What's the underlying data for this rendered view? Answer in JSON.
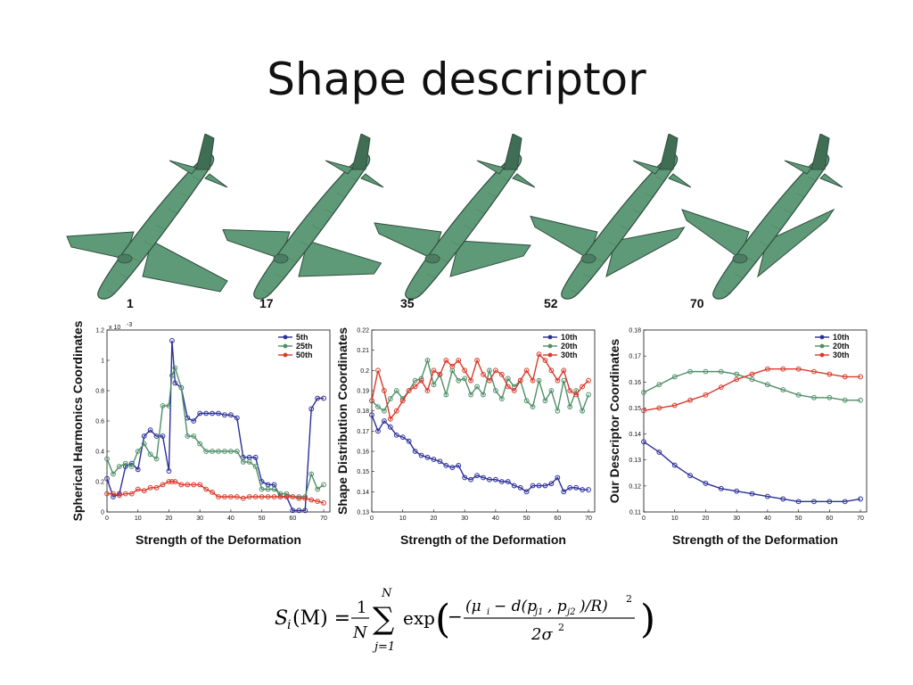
{
  "slide": {
    "title": "Shape descriptor"
  },
  "planes": {
    "labels": [
      "1",
      "17",
      "35",
      "52",
      "70"
    ],
    "fill_color": "#5f9a78",
    "wing_deflection": [
      0,
      0.25,
      0.5,
      0.75,
      1.0
    ]
  },
  "formula": {
    "lhs": "S",
    "lhs_sub": "i",
    "lhs_arg": "(M) =",
    "frac_num": "1",
    "frac_den": "N",
    "sum_top": "N",
    "sum_bottom": "j=1",
    "exp": "exp",
    "inner_num": "(μ",
    "inner_num_rest": "− d(p",
    "inner_num_rest2": ", p",
    "inner_num_rest3": ")/R)",
    "sub_i": "i",
    "sub_j1": "j1",
    "sub_j2": "j2",
    "sq": "2",
    "inner_den": "2σ",
    "minus": "−"
  },
  "chart_data": [
    {
      "type": "line",
      "xlabel": "Strength of the Deformation",
      "ylabel": "Spherical Harmonics Coordinates",
      "scale_note": "x 10",
      "scale_exp": "-3",
      "xlim": [
        0,
        72
      ],
      "ylim": [
        0,
        1.2
      ],
      "xticks": [
        0,
        10,
        20,
        30,
        40,
        50,
        60,
        70
      ],
      "yticks": [
        0,
        0.2,
        0.4,
        0.6,
        0.8,
        1,
        1.2
      ],
      "ytick_labels": [
        "0",
        "0.2",
        "0.4",
        "0.6",
        "0.8",
        "1",
        "1.2"
      ],
      "legend": "top-right",
      "series": [
        {
          "name": "5th",
          "color": "#2b2f9a",
          "x": [
            0,
            2,
            4,
            6,
            8,
            10,
            12,
            14,
            16,
            18,
            20,
            21,
            22,
            24,
            26,
            28,
            30,
            32,
            34,
            36,
            38,
            40,
            42,
            44,
            46,
            48,
            50,
            52,
            54,
            56,
            58,
            60,
            62,
            64,
            66,
            68,
            70
          ],
          "values": [
            0.22,
            0.1,
            0.12,
            0.3,
            0.32,
            0.28,
            0.5,
            0.54,
            0.5,
            0.5,
            0.27,
            1.13,
            0.85,
            0.82,
            0.62,
            0.6,
            0.65,
            0.65,
            0.65,
            0.65,
            0.64,
            0.64,
            0.62,
            0.36,
            0.36,
            0.36,
            0.2,
            0.18,
            0.18,
            0.1,
            0.1,
            0.01,
            0.01,
            0.01,
            0.68,
            0.75,
            0.75
          ]
        },
        {
          "name": "25th",
          "color": "#4f8f68",
          "x": [
            0,
            2,
            4,
            6,
            8,
            10,
            12,
            14,
            16,
            18,
            20,
            21,
            22,
            24,
            26,
            28,
            30,
            32,
            34,
            36,
            38,
            40,
            42,
            44,
            46,
            48,
            50,
            52,
            54,
            56,
            58,
            60,
            62,
            64,
            66,
            68,
            70
          ],
          "values": [
            0.35,
            0.25,
            0.3,
            0.32,
            0.3,
            0.4,
            0.45,
            0.38,
            0.35,
            0.7,
            0.7,
            0.9,
            0.95,
            0.82,
            0.5,
            0.5,
            0.45,
            0.4,
            0.4,
            0.4,
            0.4,
            0.4,
            0.4,
            0.33,
            0.33,
            0.3,
            0.15,
            0.15,
            0.15,
            0.12,
            0.12,
            0.1,
            0.1,
            0.1,
            0.25,
            0.15,
            0.18
          ]
        },
        {
          "name": "50th",
          "color": "#d93a2b",
          "x": [
            0,
            2,
            4,
            6,
            8,
            10,
            12,
            14,
            16,
            18,
            20,
            21,
            22,
            24,
            26,
            28,
            30,
            32,
            34,
            36,
            38,
            40,
            42,
            44,
            46,
            48,
            50,
            52,
            54,
            56,
            58,
            60,
            62,
            64,
            66,
            68,
            70
          ],
          "values": [
            0.12,
            0.12,
            0.11,
            0.12,
            0.12,
            0.15,
            0.14,
            0.16,
            0.16,
            0.18,
            0.2,
            0.2,
            0.2,
            0.18,
            0.18,
            0.18,
            0.18,
            0.15,
            0.13,
            0.1,
            0.1,
            0.1,
            0.1,
            0.09,
            0.1,
            0.1,
            0.1,
            0.1,
            0.1,
            0.1,
            0.1,
            0.1,
            0.09,
            0.09,
            0.08,
            0.07,
            0.06
          ]
        }
      ]
    },
    {
      "type": "line",
      "xlabel": "Strength of the Deformation",
      "ylabel": "Shape Distribution Coordinates",
      "xlim": [
        0,
        72
      ],
      "ylim": [
        0.13,
        0.22
      ],
      "xticks": [
        0,
        10,
        20,
        30,
        40,
        50,
        60,
        70
      ],
      "yticks": [
        0.13,
        0.14,
        0.15,
        0.16,
        0.17,
        0.18,
        0.19,
        0.2,
        0.21,
        0.22
      ],
      "ytick_labels": [
        "0.13",
        "0.14",
        "0.15",
        "0.16",
        "0.17",
        "0.18",
        "0.19",
        "0.2",
        "0.21",
        "0.22"
      ],
      "legend": "top-right",
      "series": [
        {
          "name": "10th",
          "color": "#2b2f9a",
          "x": [
            0,
            2,
            4,
            6,
            8,
            10,
            12,
            14,
            16,
            18,
            20,
            22,
            24,
            26,
            28,
            30,
            32,
            34,
            36,
            38,
            40,
            42,
            44,
            46,
            48,
            50,
            52,
            54,
            56,
            58,
            60,
            62,
            64,
            66,
            68,
            70
          ],
          "values": [
            0.178,
            0.17,
            0.175,
            0.172,
            0.168,
            0.167,
            0.165,
            0.16,
            0.158,
            0.157,
            0.156,
            0.155,
            0.153,
            0.152,
            0.153,
            0.147,
            0.146,
            0.148,
            0.147,
            0.146,
            0.146,
            0.145,
            0.145,
            0.143,
            0.142,
            0.14,
            0.143,
            0.143,
            0.143,
            0.144,
            0.147,
            0.14,
            0.142,
            0.142,
            0.141,
            0.141
          ]
        },
        {
          "name": "20th",
          "color": "#4f8f68",
          "x": [
            0,
            2,
            4,
            6,
            8,
            10,
            12,
            14,
            16,
            18,
            20,
            22,
            24,
            26,
            28,
            30,
            32,
            34,
            36,
            38,
            40,
            42,
            44,
            46,
            48,
            50,
            52,
            54,
            56,
            58,
            60,
            62,
            64,
            66,
            68,
            70
          ],
          "values": [
            0.185,
            0.182,
            0.18,
            0.186,
            0.19,
            0.186,
            0.19,
            0.195,
            0.196,
            0.205,
            0.193,
            0.198,
            0.188,
            0.2,
            0.195,
            0.196,
            0.188,
            0.192,
            0.188,
            0.2,
            0.19,
            0.186,
            0.196,
            0.192,
            0.195,
            0.185,
            0.182,
            0.195,
            0.185,
            0.19,
            0.18,
            0.195,
            0.182,
            0.19,
            0.18,
            0.188
          ]
        },
        {
          "name": "30th",
          "color": "#d93a2b",
          "x": [
            0,
            2,
            4,
            6,
            8,
            10,
            12,
            14,
            16,
            18,
            20,
            22,
            24,
            26,
            28,
            30,
            32,
            34,
            36,
            38,
            40,
            42,
            44,
            46,
            48,
            50,
            52,
            54,
            56,
            58,
            60,
            62,
            64,
            66,
            68,
            70
          ],
          "values": [
            0.185,
            0.2,
            0.19,
            0.176,
            0.18,
            0.185,
            0.19,
            0.192,
            0.195,
            0.19,
            0.2,
            0.198,
            0.205,
            0.202,
            0.205,
            0.2,
            0.195,
            0.205,
            0.198,
            0.195,
            0.2,
            0.198,
            0.192,
            0.19,
            0.195,
            0.2,
            0.195,
            0.208,
            0.205,
            0.2,
            0.195,
            0.2,
            0.19,
            0.188,
            0.192,
            0.195
          ]
        }
      ]
    },
    {
      "type": "line",
      "xlabel": "Strength of the Deformation",
      "ylabel": "Our Descriptor Coordinates",
      "xlim": [
        0,
        72
      ],
      "ylim": [
        0.11,
        0.18
      ],
      "xticks": [
        0,
        10,
        20,
        30,
        40,
        50,
        60,
        70
      ],
      "yticks": [
        0.11,
        0.12,
        0.13,
        0.14,
        0.15,
        0.16,
        0.17,
        0.18
      ],
      "ytick_labels": [
        "0.11",
        "0.12",
        "0.13",
        "0.14",
        "0.15",
        "0.16",
        "0.17",
        "0.18"
      ],
      "legend": "top-right",
      "series": [
        {
          "name": "10th",
          "color": "#2b2f9a",
          "x": [
            0,
            5,
            10,
            15,
            20,
            25,
            30,
            35,
            40,
            45,
            50,
            55,
            60,
            65,
            70
          ],
          "values": [
            0.137,
            0.133,
            0.128,
            0.124,
            0.121,
            0.119,
            0.118,
            0.117,
            0.116,
            0.115,
            0.114,
            0.114,
            0.114,
            0.114,
            0.115
          ]
        },
        {
          "name": "20th",
          "color": "#4f8f68",
          "x": [
            0,
            5,
            10,
            15,
            20,
            25,
            30,
            35,
            40,
            45,
            50,
            55,
            60,
            65,
            70
          ],
          "values": [
            0.156,
            0.159,
            0.162,
            0.164,
            0.164,
            0.164,
            0.163,
            0.161,
            0.159,
            0.157,
            0.155,
            0.154,
            0.154,
            0.153,
            0.153
          ]
        },
        {
          "name": "30th",
          "color": "#d93a2b",
          "x": [
            0,
            5,
            10,
            15,
            20,
            25,
            30,
            35,
            40,
            45,
            50,
            55,
            60,
            65,
            70
          ],
          "values": [
            0.149,
            0.15,
            0.151,
            0.153,
            0.155,
            0.158,
            0.161,
            0.163,
            0.165,
            0.165,
            0.165,
            0.164,
            0.163,
            0.162,
            0.162
          ]
        }
      ]
    }
  ]
}
